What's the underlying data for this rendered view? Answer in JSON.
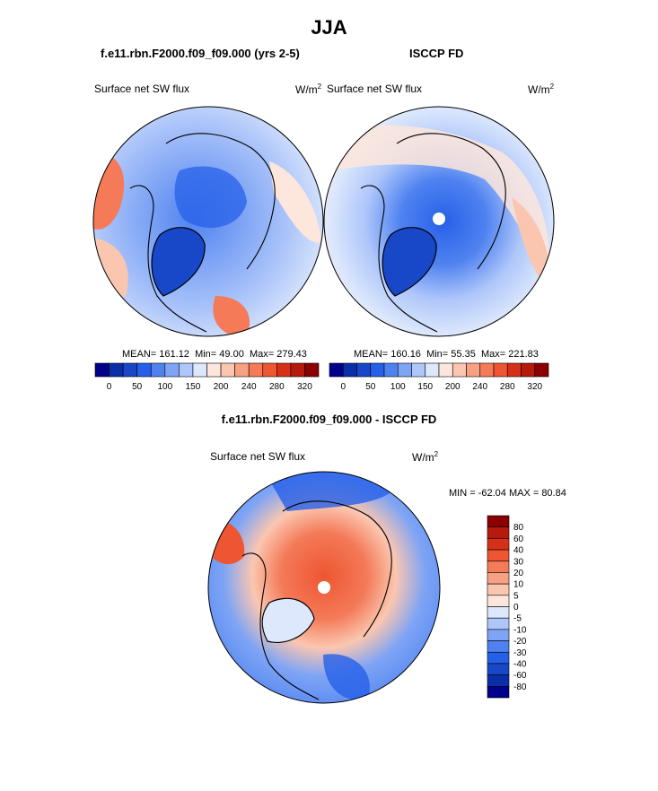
{
  "page": {
    "title": "JJA",
    "panel1_title": "f.e11.rbn.F2000.f09_f09.000 (yrs 2-5)",
    "panel2_title": "ISCCP FD",
    "panel3_title": "f.e11.rbn.F2000.f09_f09.000 - ISCCP FD"
  },
  "chart_data": [
    {
      "type": "heatmap",
      "projection": "north-polar-stereographic",
      "title": "f.e11.rbn.F2000.f09_f09.000 (yrs 2-5)",
      "variable": "Surface net SW flux",
      "units_base": "W/m",
      "units_exp": "2",
      "stats": {
        "mean_label": "MEAN=",
        "mean": "161.12",
        "min_label": "Min=",
        "min": "49.00",
        "max_label": "Max=",
        "max": "279.43"
      },
      "colorbar": {
        "orientation": "horizontal",
        "ticks": [
          "0",
          "50",
          "100",
          "150",
          "200",
          "240",
          "280",
          "320"
        ],
        "colors": [
          "#00008b",
          "#0a2ea8",
          "#1848c8",
          "#2660e8",
          "#4f82f0",
          "#7ea4f5",
          "#aec6fa",
          "#dde8fc",
          "#fde6dc",
          "#fbc6b0",
          "#f7a082",
          "#f47a58",
          "#ee5532",
          "#d73018",
          "#b51a0c",
          "#8b0000"
        ]
      }
    },
    {
      "type": "heatmap",
      "projection": "north-polar-stereographic",
      "title": "ISCCP FD",
      "variable": "Surface net SW flux",
      "units_base": "W/m",
      "units_exp": "2",
      "stats": {
        "mean_label": "MEAN=",
        "mean": "160.16",
        "min_label": "Min=",
        "min": "55.35",
        "max_label": "Max=",
        "max": "221.83"
      },
      "colorbar": {
        "orientation": "horizontal",
        "ticks": [
          "0",
          "50",
          "100",
          "150",
          "200",
          "240",
          "280",
          "320"
        ],
        "colors": [
          "#00008b",
          "#0a2ea8",
          "#1848c8",
          "#2660e8",
          "#4f82f0",
          "#7ea4f5",
          "#aec6fa",
          "#dde8fc",
          "#fde6dc",
          "#fbc6b0",
          "#f7a082",
          "#f47a58",
          "#ee5532",
          "#d73018",
          "#b51a0c",
          "#8b0000"
        ]
      }
    },
    {
      "type": "heatmap",
      "projection": "north-polar-stereographic",
      "title": "f.e11.rbn.F2000.f09_f09.000 - ISCCP FD",
      "variable": "Surface net SW flux",
      "units_base": "W/m",
      "units_exp": "2",
      "stats": {
        "text": "MIN = -62.04 MAX =  80.84"
      },
      "colorbar": {
        "orientation": "vertical",
        "ticks": [
          "80",
          "60",
          "40",
          "30",
          "20",
          "10",
          "5",
          "0",
          "-5",
          "-10",
          "-20",
          "-30",
          "-40",
          "-60",
          "-80"
        ],
        "colors": [
          "#8b0000",
          "#b51a0c",
          "#d73018",
          "#ee5532",
          "#f47a58",
          "#f7a082",
          "#fbc6b0",
          "#fde6dc",
          "#dde8fc",
          "#aec6fa",
          "#7ea4f5",
          "#4f82f0",
          "#2660e8",
          "#1848c8",
          "#0a2ea8",
          "#00008b"
        ]
      }
    }
  ]
}
